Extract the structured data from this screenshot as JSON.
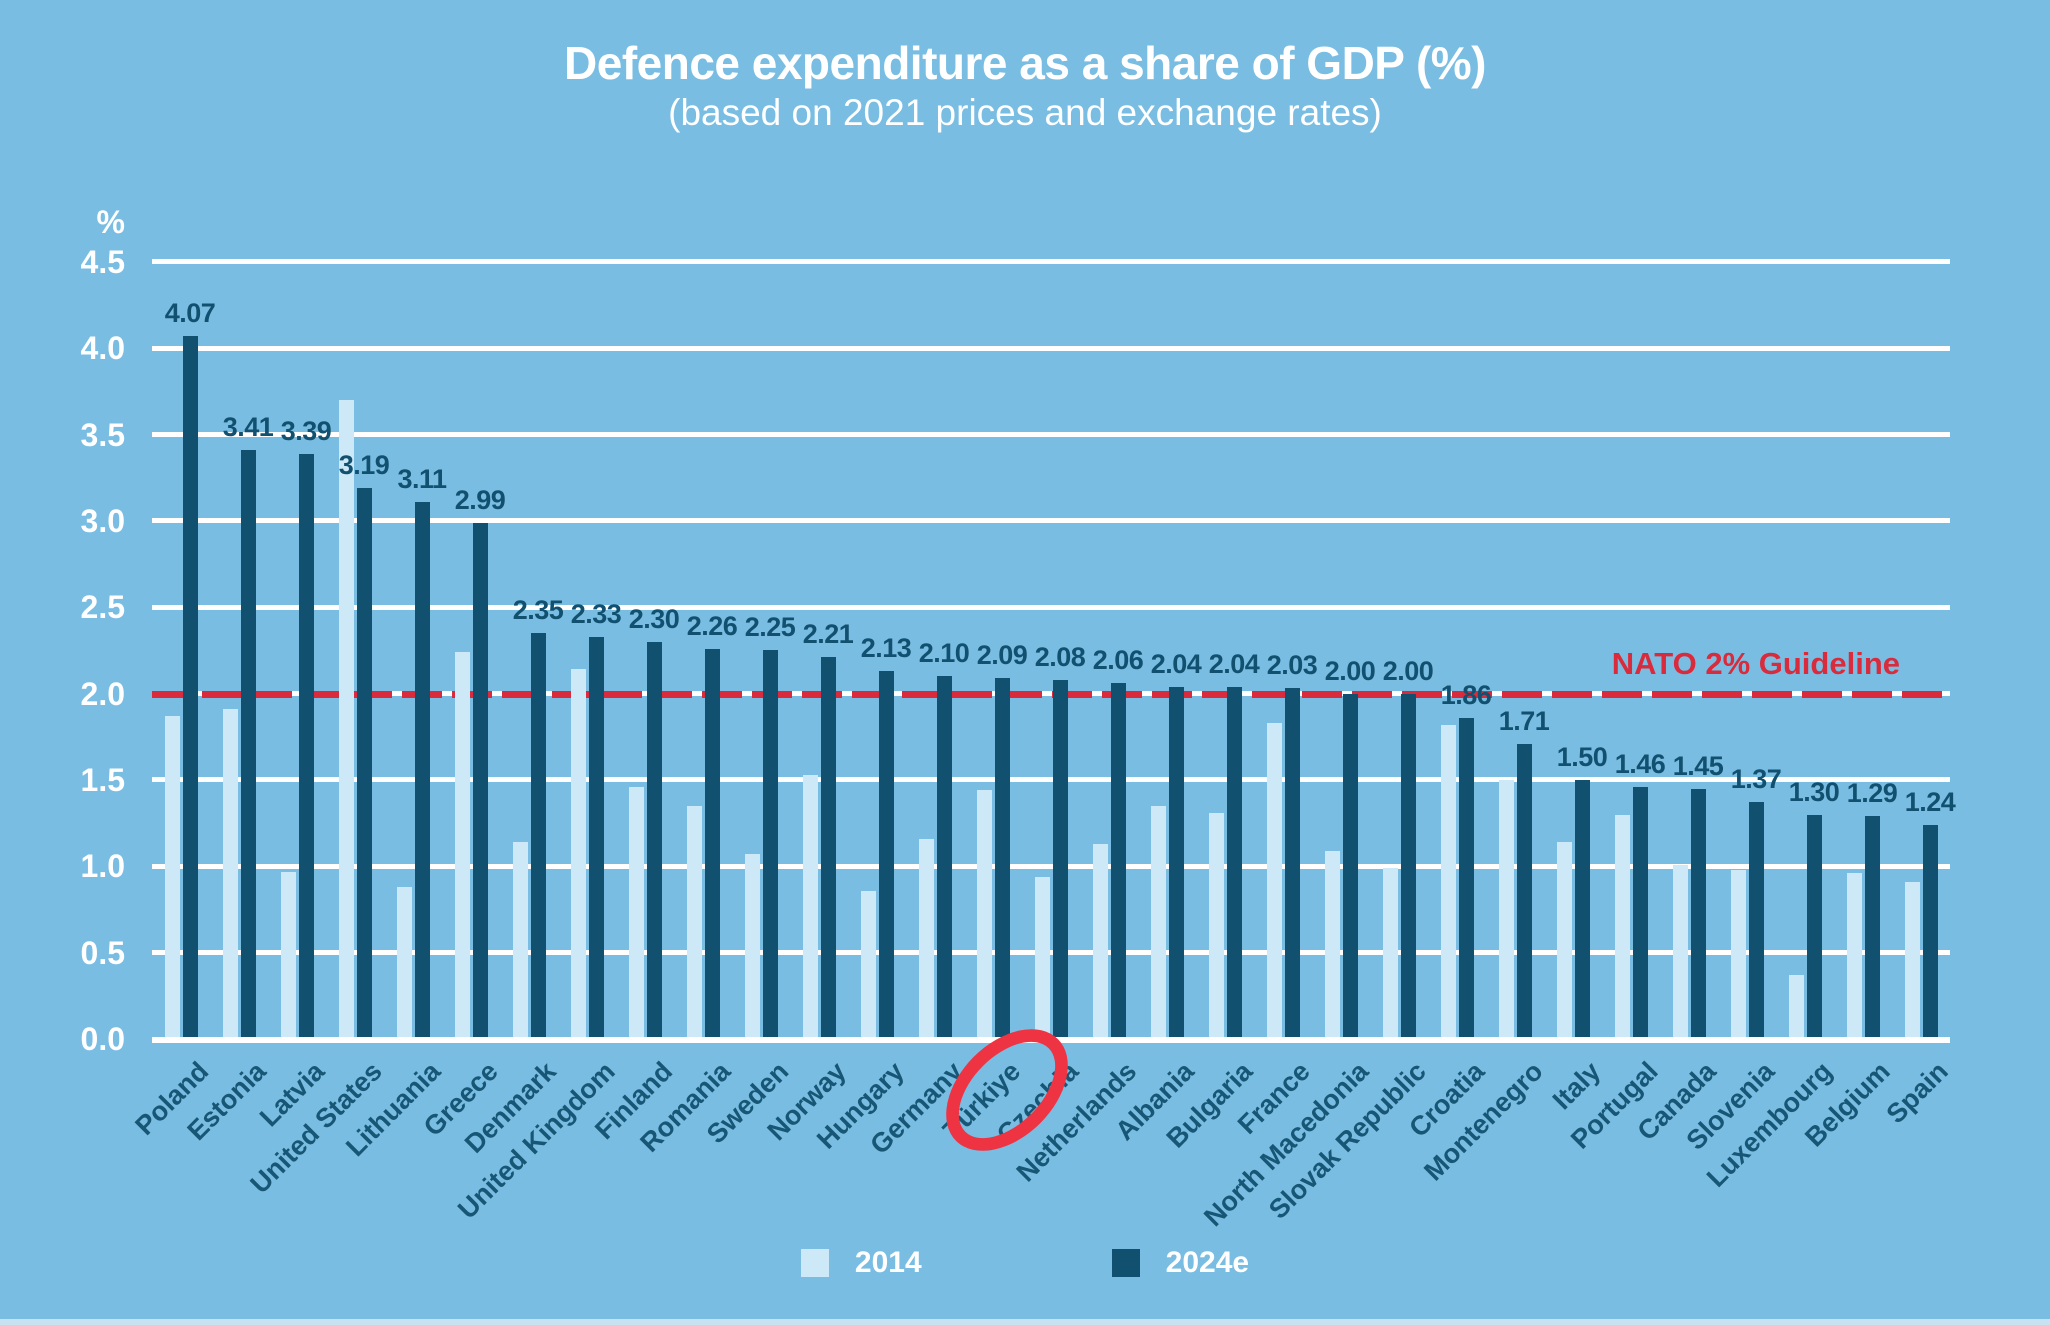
{
  "header": {
    "title": "Defence expenditure as a share of GDP (%)",
    "subtitle": "(based on 2021 prices and exchange rates)"
  },
  "y_axis": {
    "unit": "%",
    "ticks": [
      "4.5",
      "4.0",
      "3.5",
      "3.0",
      "2.5",
      "2.0",
      "1.5",
      "1.0",
      "0.5",
      "0.0"
    ]
  },
  "guideline": {
    "label": "NATO 2% Guideline",
    "value": 2.0
  },
  "legend": {
    "items": [
      {
        "label": "2014",
        "color": "#cde8f7"
      },
      {
        "label": "2024e",
        "color": "#12506f"
      }
    ]
  },
  "colors": {
    "background": "#79bde3",
    "white": "#ffffff",
    "bar_2014": "#cde8f7",
    "bar_2024": "#12506f",
    "value_label_text": "#12506f",
    "category_label_text": "#175674",
    "guideline_red": "#d92b3b",
    "circle_red": "#ee3343"
  },
  "chart_data": {
    "type": "bar",
    "title": "Defence expenditure as a share of GDP (%)",
    "subtitle": "(based on 2021 prices and exchange rates)",
    "ylabel": "%",
    "ylim": [
      0,
      4.5
    ],
    "grid": "horizontal, every 0.5",
    "legend_position": "bottom",
    "categories": [
      "Poland",
      "Estonia",
      "Latvia",
      "United States",
      "Lithuania",
      "Greece",
      "Denmark",
      "United Kingdom",
      "Finland",
      "Romania",
      "Sweden",
      "Norway",
      "Hungary",
      "Germany",
      "Türkiye",
      "Czechia",
      "Netherlands",
      "Albania",
      "Bulgaria",
      "France",
      "North Macedonia",
      "Slovak Republic",
      "Croatia",
      "Montenegro",
      "Italy",
      "Portugal",
      "Canada",
      "Slovenia",
      "Luxembourg",
      "Belgium",
      "Spain"
    ],
    "series": [
      {
        "name": "2014",
        "values": [
          1.87,
          1.91,
          0.97,
          3.7,
          0.88,
          2.24,
          1.14,
          2.14,
          1.46,
          1.35,
          1.07,
          1.53,
          0.86,
          1.16,
          1.44,
          0.94,
          1.13,
          1.35,
          1.31,
          1.83,
          1.09,
          0.99,
          1.82,
          1.5,
          1.14,
          1.3,
          1.01,
          0.98,
          0.37,
          0.96,
          0.91
        ],
        "labels_shown": false
      },
      {
        "name": "2024e",
        "values": [
          4.07,
          3.41,
          3.39,
          3.19,
          3.11,
          2.99,
          2.35,
          2.33,
          2.3,
          2.26,
          2.25,
          2.21,
          2.13,
          2.1,
          2.09,
          2.08,
          2.06,
          2.04,
          2.04,
          2.03,
          2.0,
          2.0,
          1.86,
          1.71,
          1.5,
          1.46,
          1.45,
          1.37,
          1.3,
          1.29,
          1.24
        ],
        "labels_shown": true
      }
    ],
    "guideline": {
      "label": "NATO 2% Guideline",
      "value": 2.0
    },
    "annotation": {
      "circled_category": "Czechia"
    }
  }
}
